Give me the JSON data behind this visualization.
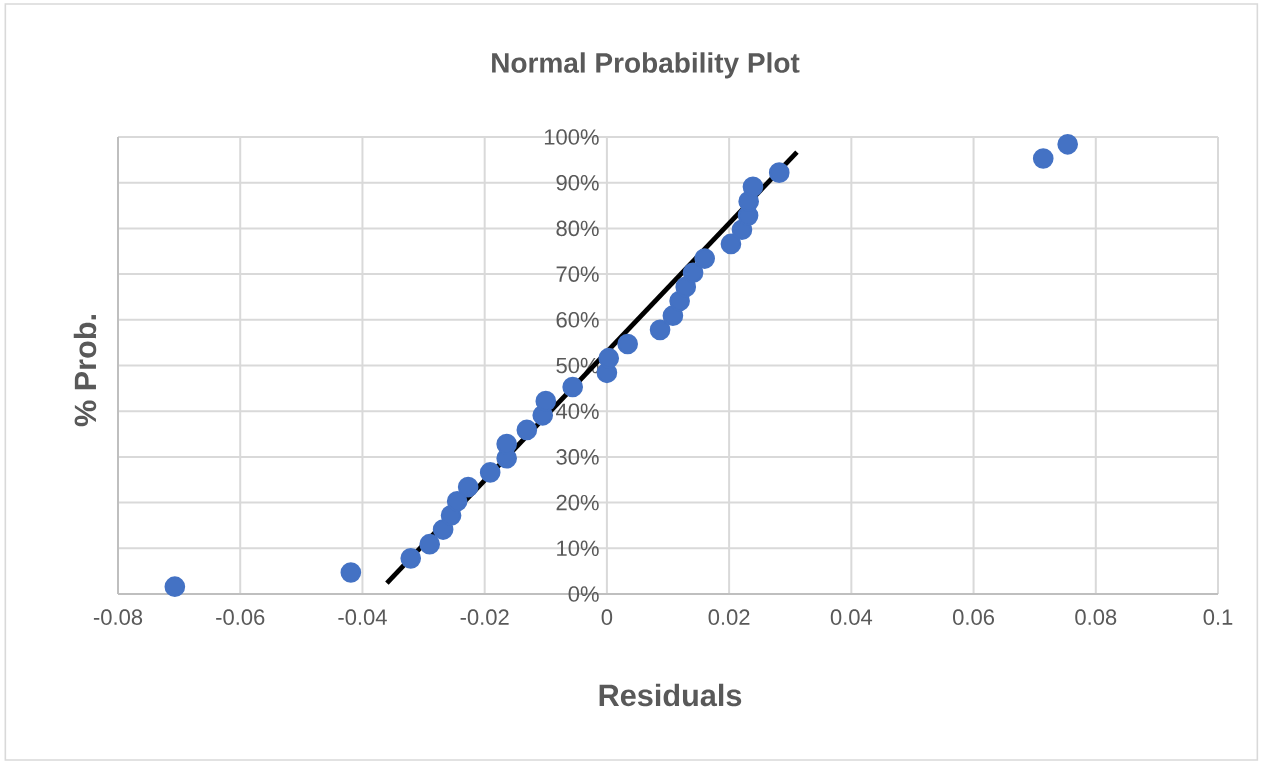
{
  "chart_data": {
    "type": "scatter",
    "title": "Normal Probability Plot",
    "xlabel": "Residuals",
    "ylabel": "% Prob.",
    "series": [
      {
        "color": "#4472c4",
        "marker": "circle",
        "x": [
          -0.0707,
          -0.0419,
          -0.0321,
          -0.029,
          -0.0268,
          -0.0255,
          -0.0245,
          -0.0227,
          -0.0191,
          -0.0164,
          -0.0164,
          -0.0131,
          -0.0105,
          -0.01,
          -0.0056,
          0.0,
          0.0003,
          0.0034,
          0.0087,
          0.0108,
          0.0119,
          0.0129,
          0.0141,
          0.016,
          0.0203,
          0.0221,
          0.0231,
          0.0232,
          0.0239,
          0.0282,
          0.0714,
          0.0754
        ],
        "values": [
          1.6,
          4.7,
          7.8,
          10.9,
          14.1,
          17.2,
          20.3,
          23.4,
          26.6,
          29.7,
          32.8,
          35.9,
          39.1,
          42.2,
          45.3,
          48.4,
          51.6,
          54.7,
          57.8,
          60.9,
          64.1,
          67.2,
          70.3,
          73.4,
          76.6,
          79.7,
          82.8,
          85.9,
          89.1,
          92.2,
          95.3,
          98.4
        ]
      },
      {
        "type": "line",
        "color": "#000000",
        "marker": "none",
        "x": [
          -0.036,
          0.0311
        ],
        "values": [
          2.4,
          96.7
        ]
      }
    ],
    "xlim": [
      -0.08,
      0.1
    ],
    "xticks": [
      -0.08,
      -0.06,
      -0.04,
      -0.02,
      0,
      0.02,
      0.04,
      0.06,
      0.08,
      0.1
    ],
    "ylim": [
      0,
      100
    ],
    "yticks": [
      {
        "value": 0,
        "label": "0%"
      },
      {
        "value": 10,
        "label": "10%"
      },
      {
        "value": 20,
        "label": "20%"
      },
      {
        "value": 30,
        "label": "30%"
      },
      {
        "value": 40,
        "label": "40%"
      },
      {
        "value": 50,
        "label": "50%"
      },
      {
        "value": 60,
        "label": "60%"
      },
      {
        "value": 70,
        "label": "70%"
      },
      {
        "value": 80,
        "label": "80%"
      },
      {
        "value": 90,
        "label": "90%"
      },
      {
        "value": 100,
        "label": "100%"
      }
    ],
    "grid": true
  }
}
